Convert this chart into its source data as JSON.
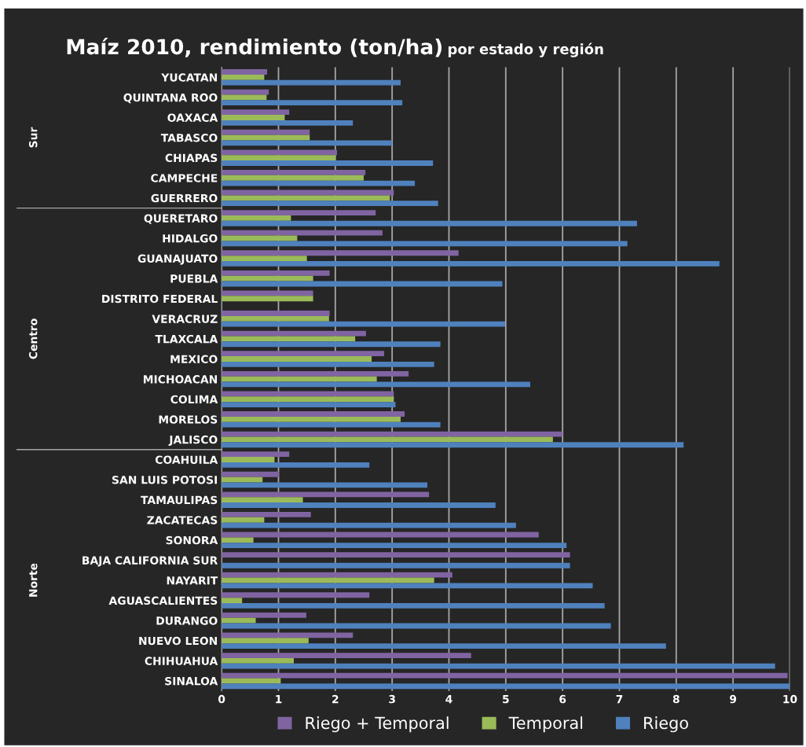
{
  "chart_data": {
    "type": "bar",
    "orientation": "horizontal",
    "title": "Maíz 2010, rendimiento (ton/ha)",
    "subtitle": "por estado y región",
    "categories": [
      "YUCATAN",
      "QUINTANA ROO",
      "OAXACA",
      "TABASCO",
      "CHIAPAS",
      "CAMPECHE",
      "GUERRERO",
      "QUERETARO",
      "HIDALGO",
      "GUANAJUATO",
      "PUEBLA",
      "DISTRITO FEDERAL",
      "VERACRUZ",
      "TLAXCALA",
      "MEXICO",
      "MICHOACAN",
      "COLIMA",
      "MORELOS",
      "JALISCO",
      "COAHUILA",
      "SAN LUIS POTOSI",
      "TAMAULIPAS",
      "ZACATECAS",
      "SONORA",
      "BAJA CALIFORNIA SUR",
      "NAYARIT",
      "AGUASCALIENTES",
      "DURANGO",
      "NUEVO LEON",
      "CHIHUAHUA",
      "SINALOA"
    ],
    "series": [
      {
        "name": "Riego + Temporal",
        "color": "#8064a2",
        "values": [
          0.8,
          0.83,
          1.19,
          1.55,
          2.03,
          2.53,
          3.03,
          2.71,
          2.83,
          4.17,
          1.9,
          1.61,
          1.9,
          2.54,
          2.86,
          3.29,
          3.03,
          3.22,
          6.0,
          1.19,
          1.01,
          3.65,
          1.57,
          5.58,
          6.13,
          4.06,
          2.6,
          1.49,
          2.31,
          4.39,
          9.96
        ]
      },
      {
        "name": "Temporal",
        "color": "#9bbb59",
        "values": [
          0.75,
          0.79,
          1.11,
          1.55,
          2.0,
          2.5,
          2.96,
          1.22,
          1.33,
          1.5,
          1.61,
          1.61,
          1.89,
          2.35,
          2.64,
          2.73,
          3.03,
          3.15,
          5.83,
          0.93,
          0.72,
          1.43,
          0.75,
          0.56,
          null,
          3.74,
          0.36,
          0.6,
          1.53,
          1.27,
          1.04
        ]
      },
      {
        "name": "Riego",
        "color": "#4f81bd",
        "values": [
          3.15,
          3.18,
          2.31,
          3.0,
          3.72,
          3.4,
          3.81,
          7.31,
          7.14,
          8.76,
          4.94,
          null,
          4.99,
          3.85,
          3.74,
          5.43,
          3.06,
          3.85,
          8.13,
          2.6,
          3.62,
          4.82,
          5.18,
          6.07,
          6.13,
          6.53,
          6.74,
          6.85,
          7.82,
          9.74,
          10.0
        ]
      }
    ],
    "xlim": [
      0,
      10
    ],
    "xticks": [
      0,
      1,
      2,
      3,
      4,
      5,
      6,
      7,
      8,
      9,
      10
    ],
    "grid": "x",
    "legend": "bottom",
    "annotations": [
      "Sur",
      "Centro",
      "Norte"
    ]
  }
}
